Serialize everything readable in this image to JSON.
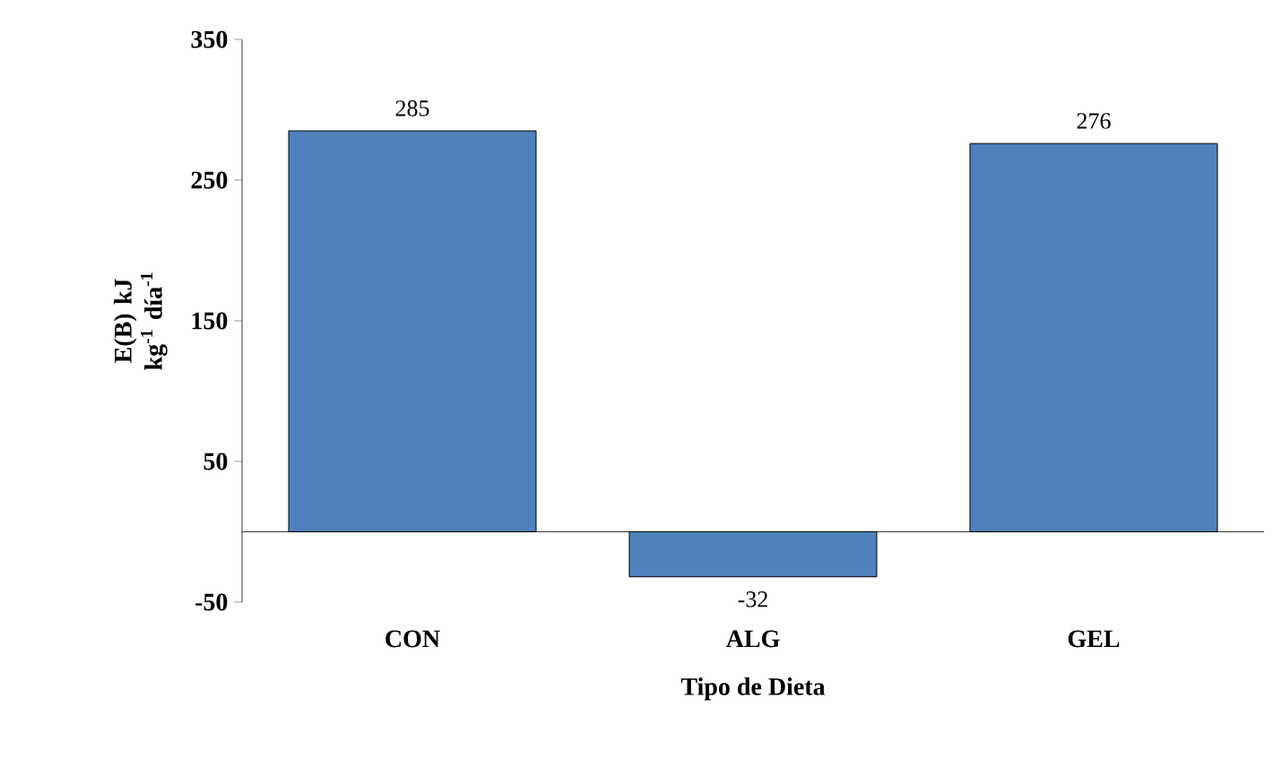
{
  "chart_data": {
    "type": "bar",
    "xlabel": "Tipo de Dieta",
    "ylabel": "E(B) kJ kg$^{-1}$ día$^{-1}$",
    "categories": [
      "CON",
      "ALG",
      "GEL"
    ],
    "values": [
      285,
      -32,
      276
    ],
    "color": "#4f81bd",
    "ylim": [
      -50,
      350
    ],
    "yticks": [
      -50,
      50,
      150,
      250,
      350
    ],
    "data_labels": true
  }
}
